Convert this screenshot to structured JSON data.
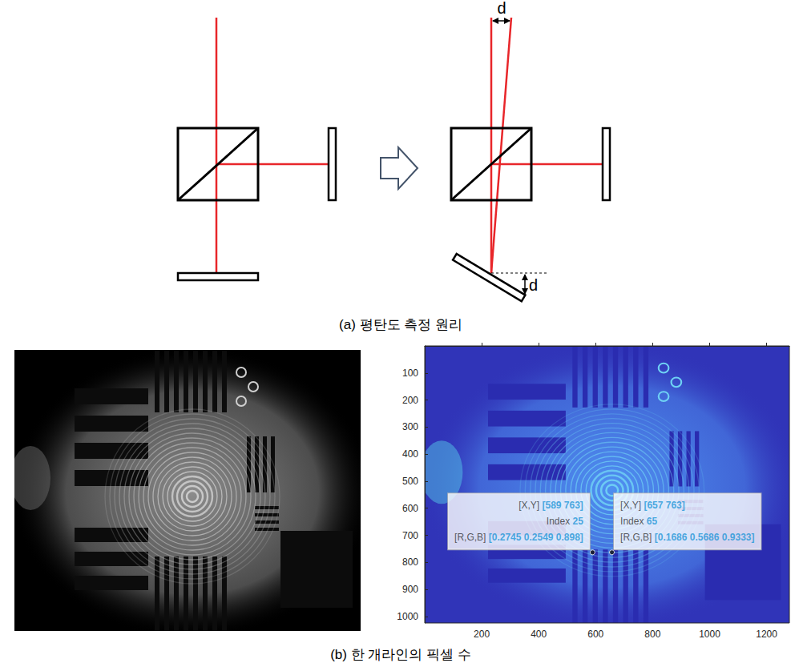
{
  "panel_a": {
    "labels": [
      "d",
      "d"
    ],
    "caption": "(a) 평탄도 측정 원리"
  },
  "panel_b": {
    "caption": "(b) 한 개라인의 픽셀 수"
  },
  "chart_data": {
    "type": "image",
    "xlim": [
      0,
      1280
    ],
    "xticks": [
      200,
      400,
      600,
      800,
      1000,
      1200
    ],
    "ylim": [
      0,
      1024
    ],
    "yticks": [
      100,
      200,
      300,
      400,
      500,
      600,
      700,
      800,
      900,
      1000
    ],
    "grid": false,
    "datatips": [
      {
        "x": 589,
        "y": 763,
        "lines": [
          {
            "key": "[X,Y]",
            "value": "[589 763]"
          },
          {
            "key": "Index",
            "value": "25"
          },
          {
            "key": "[R,G,B]",
            "value": "[0.2745 0.2549 0.898]"
          }
        ]
      },
      {
        "x": 657,
        "y": 763,
        "lines": [
          {
            "key": "[X,Y]",
            "value": "[657 763]"
          },
          {
            "key": "Index",
            "value": "65"
          },
          {
            "key": "[R,G,B]",
            "value": "[0.1686 0.5686 0.9333]"
          }
        ]
      }
    ]
  }
}
